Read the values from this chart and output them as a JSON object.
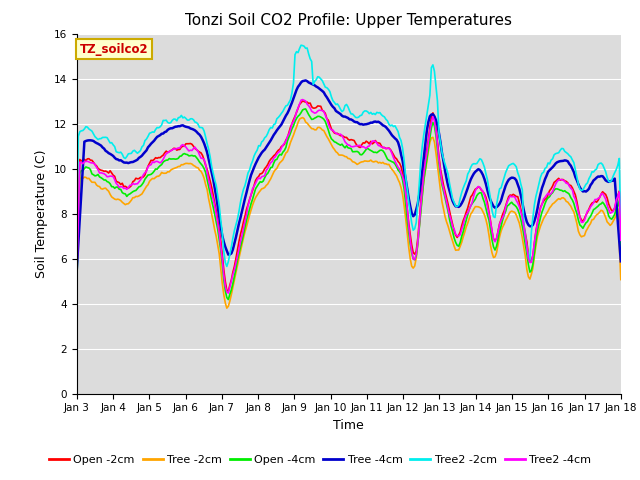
{
  "title": "Tonzi Soil CO2 Profile: Upper Temperatures",
  "xlabel": "Time",
  "ylabel": "Soil Temperature (C)",
  "watermark": "TZ_soilco2",
  "ylim": [
    0,
    16
  ],
  "yticks": [
    0,
    2,
    4,
    6,
    8,
    10,
    12,
    14,
    16
  ],
  "xtick_labels": [
    "Jan 3",
    "Jan 4",
    "Jan 5",
    "Jan 6",
    "Jan 7",
    "Jan 8",
    "Jan 9",
    "Jan 10",
    "Jan 11",
    "Jan 12",
    "Jan 13",
    "Jan 14",
    "Jan 15",
    "Jan 16",
    "Jan 17",
    "Jan 18"
  ],
  "bg_color": "#dcdcdc",
  "series_names": [
    "Open -2cm",
    "Tree -2cm",
    "Open -4cm",
    "Tree -4cm",
    "Tree2 -2cm",
    "Tree2 -4cm"
  ],
  "series_colors": [
    "#ff0000",
    "#ffa500",
    "#00ee00",
    "#0000cc",
    "#00eeee",
    "#ff00ff"
  ],
  "series_lw": [
    1.2,
    1.2,
    1.2,
    1.8,
    1.2,
    1.2
  ],
  "n_days": 15,
  "pts_per_day": 24
}
